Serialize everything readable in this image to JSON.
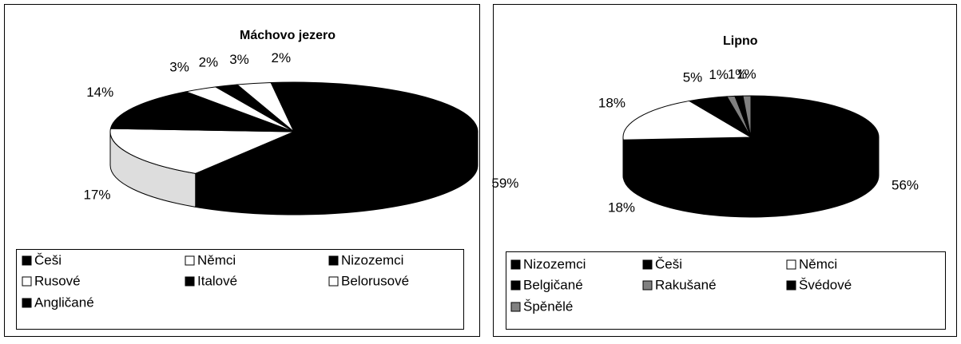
{
  "chart_data": [
    {
      "type": "pie",
      "title": "Máchovo jezero",
      "categories": [
        "Češi",
        "Němci",
        "Nizozemci",
        "Rusové",
        "Italové",
        "Belorusové",
        "Angličané"
      ],
      "values": [
        59,
        17,
        14,
        3,
        2,
        3,
        2
      ],
      "value_labels": [
        "59%",
        "17%",
        "14%",
        "3%",
        "2%",
        "3%",
        "2%"
      ],
      "colors": [
        "#000000",
        "#ffffff",
        "#000000",
        "#ffffff",
        "#000000",
        "#ffffff",
        "#000000"
      ]
    },
    {
      "type": "pie",
      "title": "Lipno",
      "categories": [
        "Nizozemci",
        "Češi",
        "Němci",
        "Belgičané",
        "Rakušané",
        "Švédové",
        "Špěnělé"
      ],
      "values": [
        56,
        18,
        18,
        5,
        1,
        1,
        1
      ],
      "value_labels": [
        "56%",
        "18%",
        "18%",
        "5%",
        "1%",
        "1%",
        "1%"
      ],
      "colors": [
        "#000000",
        "#000000",
        "#ffffff",
        "#000000",
        "#808080",
        "#000000",
        "#808080"
      ]
    }
  ]
}
